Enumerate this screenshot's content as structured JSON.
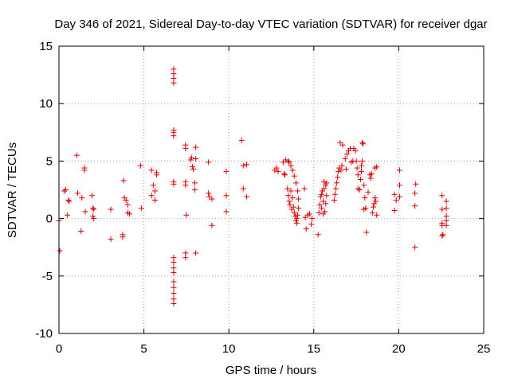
{
  "chart_data": {
    "type": "scatter",
    "title": "Day 346 of 2021, Sidereal Day-to-day VTEC variation (SDTVAR) for receiver dgar",
    "xlabel": "GPS time / hours",
    "ylabel": "SDTVAR / TECUs",
    "xlim": [
      0,
      25
    ],
    "ylim": [
      -10,
      15
    ],
    "xticks": [
      0,
      5,
      10,
      15,
      20,
      25
    ],
    "yticks": [
      -10,
      -5,
      0,
      5,
      10,
      15
    ],
    "grid": true,
    "marker": "+",
    "series": [
      {
        "name": "SDTVAR",
        "color": "#e00000",
        "points": [
          [
            0.0,
            -0.2
          ],
          [
            0.05,
            -2.8
          ],
          [
            0.3,
            2.4
          ],
          [
            0.4,
            2.5
          ],
          [
            0.5,
            0.3
          ],
          [
            0.55,
            1.6
          ],
          [
            0.6,
            1.5
          ],
          [
            1.05,
            5.5
          ],
          [
            1.1,
            2.2
          ],
          [
            1.3,
            -1.1
          ],
          [
            1.35,
            1.8
          ],
          [
            1.5,
            4.4
          ],
          [
            1.5,
            4.2
          ],
          [
            1.55,
            0.6
          ],
          [
            1.95,
            2.0
          ],
          [
            2.0,
            0.9
          ],
          [
            2.0,
            0.2
          ],
          [
            2.05,
            0.0
          ],
          [
            2.05,
            0.8
          ],
          [
            3.05,
            0.8
          ],
          [
            3.05,
            -1.8
          ],
          [
            3.75,
            -1.4
          ],
          [
            3.75,
            -1.6
          ],
          [
            3.8,
            3.3
          ],
          [
            3.85,
            1.8
          ],
          [
            3.95,
            1.6
          ],
          [
            4.05,
            1.2
          ],
          [
            4.05,
            0.5
          ],
          [
            4.15,
            0.4
          ],
          [
            4.8,
            4.6
          ],
          [
            4.85,
            0.9
          ],
          [
            5.45,
            2.0
          ],
          [
            5.45,
            4.2
          ],
          [
            5.55,
            2.9
          ],
          [
            5.65,
            1.6
          ],
          [
            5.65,
            2.4
          ],
          [
            5.75,
            3.8
          ],
          [
            5.75,
            4.0
          ],
          [
            6.75,
            13.0
          ],
          [
            6.75,
            12.6
          ],
          [
            6.75,
            12.2
          ],
          [
            6.75,
            11.8
          ],
          [
            6.75,
            7.7
          ],
          [
            6.75,
            7.5
          ],
          [
            6.75,
            7.2
          ],
          [
            6.75,
            3.2
          ],
          [
            6.75,
            3.0
          ],
          [
            6.75,
            -3.4
          ],
          [
            6.75,
            -3.8
          ],
          [
            6.75,
            -4.3
          ],
          [
            6.75,
            -4.7
          ],
          [
            6.75,
            -5.5
          ],
          [
            6.75,
            -6.0
          ],
          [
            6.75,
            -6.5
          ],
          [
            6.75,
            -7.0
          ],
          [
            6.75,
            -7.4
          ],
          [
            7.45,
            6.4
          ],
          [
            7.45,
            6.1
          ],
          [
            7.45,
            3.2
          ],
          [
            7.45,
            2.9
          ],
          [
            7.5,
            0.3
          ],
          [
            7.45,
            -3.0
          ],
          [
            7.45,
            -3.4
          ],
          [
            7.75,
            5.1
          ],
          [
            7.8,
            5.3
          ],
          [
            7.85,
            4.5
          ],
          [
            7.9,
            4.3
          ],
          [
            8.0,
            3.1
          ],
          [
            8.0,
            2.5
          ],
          [
            8.05,
            5.2
          ],
          [
            8.05,
            6.2
          ],
          [
            8.05,
            -3.0
          ],
          [
            8.8,
            4.9
          ],
          [
            8.8,
            2.2
          ],
          [
            8.85,
            1.9
          ],
          [
            9.0,
            1.7
          ],
          [
            9.0,
            -0.6
          ],
          [
            9.85,
            4.1
          ],
          [
            9.85,
            2.0
          ],
          [
            9.85,
            0.6
          ],
          [
            10.75,
            6.8
          ],
          [
            10.85,
            2.6
          ],
          [
            10.85,
            4.6
          ],
          [
            11.05,
            4.7
          ],
          [
            11.05,
            1.9
          ],
          [
            12.7,
            4.2
          ],
          [
            12.8,
            4.4
          ],
          [
            12.9,
            4.1
          ],
          [
            13.2,
            4.9
          ],
          [
            13.25,
            3.9
          ],
          [
            13.3,
            3.8
          ],
          [
            13.35,
            5.1
          ],
          [
            13.5,
            5.0
          ],
          [
            13.45,
            2.6
          ],
          [
            13.5,
            2.0
          ],
          [
            13.55,
            1.5
          ],
          [
            13.6,
            1.2
          ],
          [
            13.65,
            2.4
          ],
          [
            13.7,
            0.8
          ],
          [
            13.75,
            1.8
          ],
          [
            13.8,
            1.0
          ],
          [
            13.85,
            0.5
          ],
          [
            13.9,
            0.2
          ],
          [
            13.95,
            -0.2
          ],
          [
            14.0,
            -0.4
          ],
          [
            13.55,
            4.9
          ],
          [
            13.65,
            4.6
          ],
          [
            13.75,
            4.2
          ],
          [
            13.85,
            3.7
          ],
          [
            13.95,
            3.1
          ],
          [
            14.05,
            2.4
          ],
          [
            14.1,
            1.7
          ],
          [
            14.1,
            0.9
          ],
          [
            14.05,
            0.3
          ],
          [
            14.0,
            0.0
          ],
          [
            14.45,
            2.6
          ],
          [
            14.5,
            0.1
          ],
          [
            14.55,
            -0.9
          ],
          [
            14.65,
            0.3
          ],
          [
            14.75,
            0.4
          ],
          [
            14.85,
            -0.5
          ],
          [
            14.9,
            0.0
          ],
          [
            15.25,
            -1.4
          ],
          [
            15.3,
            0.5
          ],
          [
            15.35,
            1.2
          ],
          [
            15.4,
            1.9
          ],
          [
            15.45,
            2.1
          ],
          [
            15.45,
            0.9
          ],
          [
            15.5,
            2.4
          ],
          [
            15.55,
            0.4
          ],
          [
            15.55,
            1.5
          ],
          [
            15.6,
            2.6
          ],
          [
            15.6,
            3.2
          ],
          [
            15.65,
            0.6
          ],
          [
            15.7,
            1.3
          ],
          [
            15.7,
            2.9
          ],
          [
            15.75,
            2.0
          ],
          [
            15.75,
            3.1
          ],
          [
            16.2,
            1.6
          ],
          [
            16.25,
            2.1
          ],
          [
            16.3,
            2.6
          ],
          [
            16.35,
            3.1
          ],
          [
            16.4,
            3.6
          ],
          [
            16.45,
            4.1
          ],
          [
            16.5,
            4.4
          ],
          [
            16.55,
            6.6
          ],
          [
            16.6,
            4.2
          ],
          [
            16.65,
            4.6
          ],
          [
            16.7,
            6.4
          ],
          [
            16.85,
            5.2
          ],
          [
            16.9,
            4.3
          ],
          [
            16.95,
            5.6
          ],
          [
            17.05,
            5.9
          ],
          [
            17.15,
            6.1
          ],
          [
            17.2,
            4.9
          ],
          [
            17.3,
            5.0
          ],
          [
            17.35,
            6.1
          ],
          [
            17.45,
            5.9
          ],
          [
            17.5,
            5.0
          ],
          [
            17.55,
            4.4
          ],
          [
            17.6,
            3.8
          ],
          [
            17.6,
            2.6
          ],
          [
            17.7,
            2.5
          ],
          [
            17.75,
            3.4
          ],
          [
            17.8,
            4.1
          ],
          [
            17.8,
            4.6
          ],
          [
            17.85,
            5.0
          ],
          [
            17.85,
            6.6
          ],
          [
            17.9,
            6.5
          ],
          [
            17.95,
            2.9
          ],
          [
            18.0,
            1.8
          ],
          [
            17.95,
            0.8
          ],
          [
            18.05,
            0.9
          ],
          [
            18.1,
            -1.2
          ],
          [
            18.2,
            2.3
          ],
          [
            18.3,
            3.8
          ],
          [
            18.35,
            3.5
          ],
          [
            18.4,
            3.9
          ],
          [
            18.45,
            0.5
          ],
          [
            18.5,
            1.0
          ],
          [
            18.55,
            1.3
          ],
          [
            18.6,
            1.8
          ],
          [
            18.6,
            4.4
          ],
          [
            18.65,
            1.5
          ],
          [
            18.7,
            4.5
          ],
          [
            18.7,
            0.3
          ],
          [
            19.75,
            2.1
          ],
          [
            19.75,
            0.7
          ],
          [
            19.85,
            1.6
          ],
          [
            20.05,
            4.2
          ],
          [
            20.05,
            2.9
          ],
          [
            20.05,
            1.9
          ],
          [
            20.95,
            -2.5
          ],
          [
            20.95,
            1.1
          ],
          [
            20.95,
            2.2
          ],
          [
            21.0,
            3.0
          ],
          [
            22.55,
            2.0
          ],
          [
            22.55,
            0.8
          ],
          [
            22.55,
            -0.4
          ],
          [
            22.55,
            -0.6
          ],
          [
            22.55,
            -1.5
          ],
          [
            22.6,
            -1.4
          ],
          [
            22.8,
            1.5
          ],
          [
            22.8,
            0.2
          ],
          [
            22.8,
            -0.2
          ],
          [
            22.8,
            0.9
          ],
          [
            22.8,
            -0.6
          ]
        ]
      }
    ]
  }
}
